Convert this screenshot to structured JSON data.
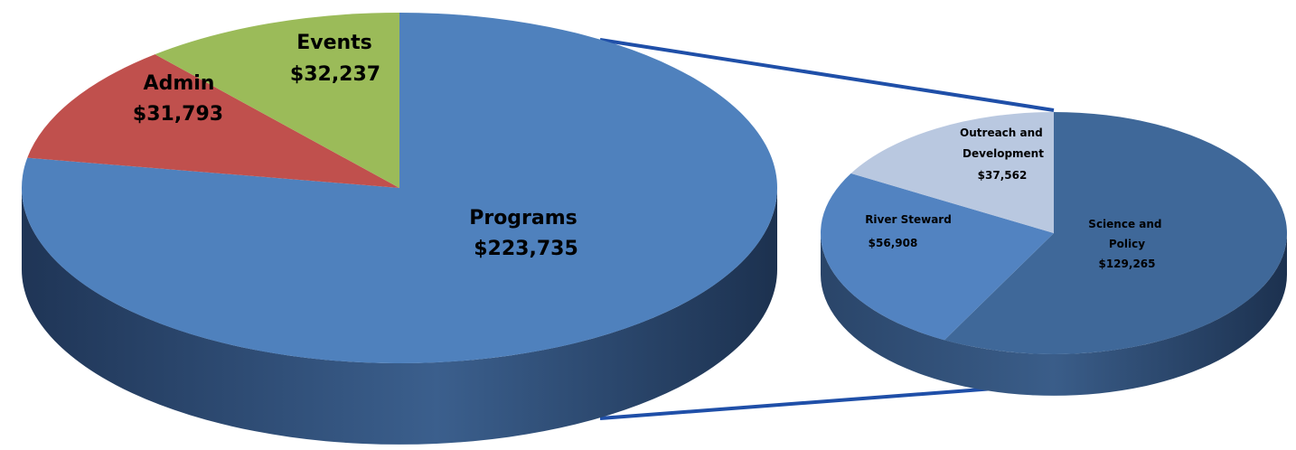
{
  "chart_data": [
    {
      "type": "pie",
      "style": "3d",
      "series": [
        {
          "name": "Programs",
          "value": 223735,
          "label": "Programs",
          "value_label": "$223,735",
          "color": "#4f81bd"
        },
        {
          "name": "Admin",
          "value": 31793,
          "label": "Admin",
          "value_label": "$31,793",
          "color": "#c0504d"
        },
        {
          "name": "Events",
          "value": 32237,
          "label": "Events",
          "value_label": "$32,237",
          "color": "#9bbb59"
        }
      ]
    },
    {
      "type": "pie",
      "style": "3d",
      "exploded_from": "Programs",
      "series": [
        {
          "name": "Science and Policy",
          "value": 129265,
          "label_lines": [
            "Science and",
            "Policy"
          ],
          "value_label": "$129,265",
          "color": "#3f6899"
        },
        {
          "name": "River Steward",
          "value": 56908,
          "label_lines": [
            "River Steward"
          ],
          "value_label": "$56,908",
          "color": "#5283c1"
        },
        {
          "name": "Outreach and Development",
          "value": 37562,
          "label_lines": [
            "Outreach and",
            "Development"
          ],
          "value_label": "$37,562",
          "color": "#b9c8e0"
        }
      ]
    }
  ],
  "connector_color": "#1f4fa8"
}
